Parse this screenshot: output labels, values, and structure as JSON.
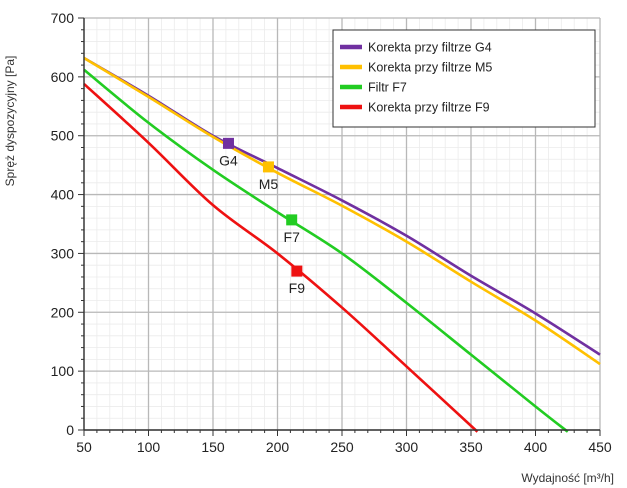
{
  "chart_data": {
    "type": "line",
    "xlabel": "Wydajność [m³/h]",
    "ylabel": "Spręż dyspozycyjny [Pa]",
    "xlim": [
      50,
      450
    ],
    "ylim": [
      0,
      700
    ],
    "x_ticks": [
      50,
      100,
      150,
      200,
      250,
      300,
      350,
      400,
      450
    ],
    "y_ticks": [
      0,
      100,
      200,
      300,
      400,
      500,
      600,
      700
    ],
    "grid": true,
    "legend_position": "top-right",
    "series": [
      {
        "name": "Korekta przy filtrze G4",
        "color": "#7030a0",
        "x": [
          50,
          100,
          150,
          200,
          250,
          300,
          350,
          400,
          450
        ],
        "y": [
          632,
          568,
          500,
          445,
          390,
          330,
          262,
          198,
          128
        ]
      },
      {
        "name": "Korekta przy filtrze M5",
        "color": "#ffc000",
        "x": [
          50,
          100,
          150,
          200,
          250,
          300,
          350,
          400,
          450
        ],
        "y": [
          632,
          566,
          498,
          437,
          381,
          320,
          252,
          186,
          112
        ]
      },
      {
        "name": "Filtr F7",
        "color": "#22cc22",
        "x": [
          50,
          100,
          150,
          200,
          250,
          300,
          350,
          400,
          425
        ],
        "y": [
          612,
          522,
          442,
          370,
          300,
          216,
          128,
          40,
          -3
        ]
      },
      {
        "name": "Korekta przy filtrze F9",
        "color": "#ee1111",
        "x": [
          50,
          100,
          150,
          200,
          250,
          300,
          355
        ],
        "y": [
          588,
          488,
          382,
          300,
          208,
          108,
          -3
        ]
      }
    ],
    "markers": [
      {
        "label": "G4",
        "x": 162,
        "y": 487,
        "color": "#7030a0"
      },
      {
        "label": "M5",
        "x": 193,
        "y": 447,
        "color": "#ffc000"
      },
      {
        "label": "F7",
        "x": 211,
        "y": 357,
        "color": "#22cc22"
      },
      {
        "label": "F9",
        "x": 215,
        "y": 270,
        "color": "#ee1111"
      }
    ]
  }
}
